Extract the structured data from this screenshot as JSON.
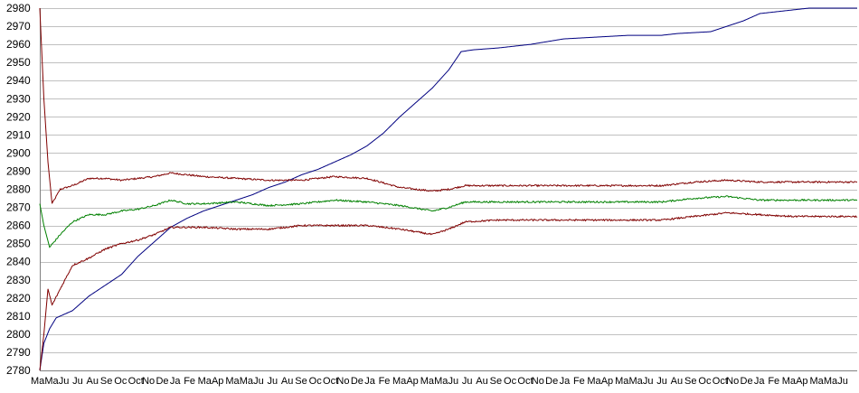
{
  "chart_data": {
    "type": "line",
    "title": "",
    "xlabel": "",
    "ylabel": "",
    "ylim": [
      2780,
      2980
    ],
    "yticks": [
      2780,
      2790,
      2800,
      2810,
      2820,
      2830,
      2840,
      2850,
      2860,
      2870,
      2880,
      2890,
      2900,
      2910,
      2920,
      2930,
      2940,
      2950,
      2960,
      2970,
      2980
    ],
    "grid": true,
    "legend": "none",
    "x_count": 1000,
    "x_tick_step": 17,
    "x_tick_labels": [
      "Ma",
      "Ma",
      "Ju",
      "Ju",
      "Au",
      "Se",
      "Oc",
      "Oct",
      "No",
      "De",
      "Ja",
      "Fe",
      "Ma",
      "Ap"
    ],
    "series": [
      {
        "color": "#000080",
        "points": [
          [
            0,
            2780
          ],
          [
            5,
            2795
          ],
          [
            12,
            2803
          ],
          [
            20,
            2809
          ],
          [
            40,
            2813
          ],
          [
            60,
            2821
          ],
          [
            80,
            2827
          ],
          [
            100,
            2833
          ],
          [
            120,
            2843
          ],
          [
            140,
            2851
          ],
          [
            160,
            2859
          ],
          [
            180,
            2864
          ],
          [
            200,
            2868
          ],
          [
            220,
            2871
          ],
          [
            240,
            2874
          ],
          [
            260,
            2877
          ],
          [
            280,
            2881
          ],
          [
            300,
            2884
          ],
          [
            320,
            2888
          ],
          [
            340,
            2891
          ],
          [
            360,
            2895
          ],
          [
            380,
            2899
          ],
          [
            400,
            2904
          ],
          [
            420,
            2911
          ],
          [
            440,
            2920
          ],
          [
            460,
            2928
          ],
          [
            480,
            2936
          ],
          [
            500,
            2946
          ],
          [
            515,
            2956
          ],
          [
            530,
            2957
          ],
          [
            560,
            2958
          ],
          [
            600,
            2960
          ],
          [
            640,
            2963
          ],
          [
            680,
            2964
          ],
          [
            720,
            2965
          ],
          [
            760,
            2965
          ],
          [
            780,
            2966
          ],
          [
            820,
            2967
          ],
          [
            840,
            2970
          ],
          [
            860,
            2973
          ],
          [
            880,
            2977
          ],
          [
            900,
            2978
          ],
          [
            920,
            2979
          ],
          [
            940,
            2980
          ],
          [
            1000,
            2980
          ]
        ]
      },
      {
        "color": "#800000",
        "points": [
          [
            0,
            2980
          ],
          [
            5,
            2930
          ],
          [
            10,
            2895
          ],
          [
            15,
            2872
          ],
          [
            25,
            2880
          ],
          [
            40,
            2882
          ],
          [
            60,
            2886
          ],
          [
            80,
            2886
          ],
          [
            100,
            2885
          ],
          [
            120,
            2886
          ],
          [
            140,
            2887
          ],
          [
            160,
            2889
          ],
          [
            180,
            2888
          ],
          [
            200,
            2887
          ],
          [
            240,
            2886
          ],
          [
            280,
            2885
          ],
          [
            320,
            2885
          ],
          [
            360,
            2887
          ],
          [
            400,
            2886
          ],
          [
            440,
            2881
          ],
          [
            480,
            2879
          ],
          [
            500,
            2880
          ],
          [
            520,
            2882
          ],
          [
            560,
            2882
          ],
          [
            600,
            2882
          ],
          [
            640,
            2882
          ],
          [
            700,
            2882
          ],
          [
            760,
            2882
          ],
          [
            800,
            2884
          ],
          [
            840,
            2885
          ],
          [
            880,
            2884
          ],
          [
            920,
            2884
          ],
          [
            1000,
            2884
          ]
        ]
      },
      {
        "color": "#008000",
        "points": [
          [
            0,
            2872
          ],
          [
            5,
            2860
          ],
          [
            12,
            2848
          ],
          [
            25,
            2855
          ],
          [
            40,
            2862
          ],
          [
            60,
            2866
          ],
          [
            80,
            2866
          ],
          [
            100,
            2868
          ],
          [
            120,
            2869
          ],
          [
            140,
            2871
          ],
          [
            160,
            2874
          ],
          [
            180,
            2872
          ],
          [
            200,
            2872
          ],
          [
            240,
            2873
          ],
          [
            280,
            2871
          ],
          [
            320,
            2872
          ],
          [
            360,
            2874
          ],
          [
            400,
            2873
          ],
          [
            440,
            2871
          ],
          [
            480,
            2868
          ],
          [
            500,
            2870
          ],
          [
            520,
            2873
          ],
          [
            560,
            2873
          ],
          [
            600,
            2873
          ],
          [
            640,
            2873
          ],
          [
            700,
            2873
          ],
          [
            760,
            2873
          ],
          [
            800,
            2875
          ],
          [
            840,
            2876
          ],
          [
            880,
            2874
          ],
          [
            920,
            2874
          ],
          [
            1000,
            2874
          ]
        ]
      },
      {
        "color": "#800000",
        "points": [
          [
            0,
            2780
          ],
          [
            5,
            2800
          ],
          [
            10,
            2825
          ],
          [
            15,
            2816
          ],
          [
            25,
            2825
          ],
          [
            40,
            2838
          ],
          [
            60,
            2842
          ],
          [
            80,
            2847
          ],
          [
            100,
            2850
          ],
          [
            120,
            2852
          ],
          [
            140,
            2855
          ],
          [
            160,
            2859
          ],
          [
            180,
            2859
          ],
          [
            200,
            2859
          ],
          [
            240,
            2858
          ],
          [
            280,
            2858
          ],
          [
            320,
            2860
          ],
          [
            360,
            2860
          ],
          [
            400,
            2860
          ],
          [
            440,
            2858
          ],
          [
            480,
            2855
          ],
          [
            500,
            2858
          ],
          [
            520,
            2862
          ],
          [
            560,
            2863
          ],
          [
            600,
            2863
          ],
          [
            640,
            2863
          ],
          [
            700,
            2863
          ],
          [
            760,
            2863
          ],
          [
            800,
            2865
          ],
          [
            840,
            2867
          ],
          [
            880,
            2866
          ],
          [
            920,
            2865
          ],
          [
            1000,
            2865
          ]
        ]
      }
    ]
  }
}
